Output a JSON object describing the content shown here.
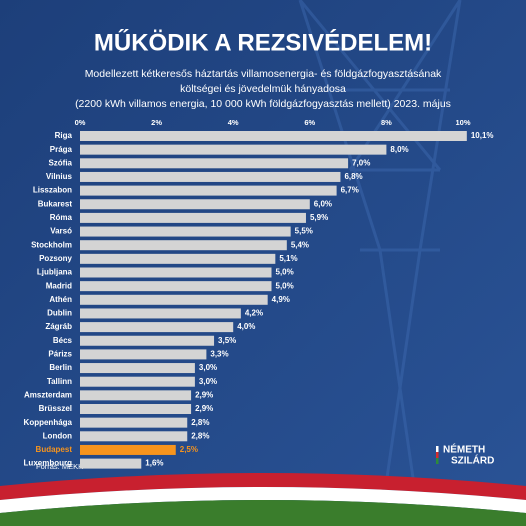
{
  "chart_data": {
    "type": "barh",
    "title": "MŰKÖDIK A REZSIVÉDELEM!",
    "subtitle": [
      "Modellezett kétkeresős háztartás villamosenergia- és földgázfogyasztásának",
      "költségei és jövedelmük hányadosa",
      "(2200 kWh villamos energia, 10 000 kWh földgázfogyasztás mellett) 2023. május"
    ],
    "categories": [
      "Riga",
      "Prága",
      "Szófia",
      "Vilnius",
      "Lisszabon",
      "Bukarest",
      "Róma",
      "Varsó",
      "Stockholm",
      "Pozsony",
      "Ljubljana",
      "Madrid",
      "Athén",
      "Dublin",
      "Zágráb",
      "Bécs",
      "Párizs",
      "Berlin",
      "Tallinn",
      "Amszterdam",
      "Brüsszel",
      "Koppenhága",
      "London",
      "Budapest",
      "Luxembourg"
    ],
    "values": [
      10.1,
      8.0,
      7.0,
      6.8,
      6.7,
      6.0,
      5.9,
      5.5,
      5.4,
      5.1,
      5.0,
      5.0,
      4.9,
      4.2,
      4.0,
      3.5,
      3.3,
      3.0,
      3.0,
      2.9,
      2.9,
      2.8,
      2.8,
      2.5,
      1.6
    ],
    "value_labels": [
      "10,1%",
      "8,0%",
      "7,0%",
      "6,8%",
      "6,7%",
      "6,0%",
      "5,9%",
      "5,5%",
      "5,4%",
      "5,1%",
      "5,0%",
      "5,0%",
      "4,9%",
      "4,2%",
      "4,0%",
      "3,5%",
      "3,3%",
      "3,0%",
      "3,0%",
      "2,9%",
      "2,9%",
      "2,8%",
      "2,8%",
      "2,5%",
      "1,6%"
    ],
    "colors": [
      "#d4d4d4",
      "#d4d4d4",
      "#d4d4d4",
      "#d4d4d4",
      "#d4d4d4",
      "#d4d4d4",
      "#d4d4d4",
      "#d4d4d4",
      "#d4d4d4",
      "#d4d4d4",
      "#d4d4d4",
      "#d4d4d4",
      "#d4d4d4",
      "#d4d4d4",
      "#d4d4d4",
      "#d4d4d4",
      "#d4d4d4",
      "#d4d4d4",
      "#d4d4d4",
      "#d4d4d4",
      "#d4d4d4",
      "#d4d4d4",
      "#d4d4d4",
      "#f7941d",
      "#d4d4d4"
    ],
    "label_colors": [
      "#ffffff",
      "#ffffff",
      "#ffffff",
      "#ffffff",
      "#ffffff",
      "#ffffff",
      "#ffffff",
      "#ffffff",
      "#ffffff",
      "#ffffff",
      "#ffffff",
      "#ffffff",
      "#ffffff",
      "#ffffff",
      "#ffffff",
      "#ffffff",
      "#ffffff",
      "#ffffff",
      "#ffffff",
      "#ffffff",
      "#ffffff",
      "#ffffff",
      "#ffffff",
      "#f7941d",
      "#ffffff"
    ],
    "xlim": [
      0,
      10.5
    ],
    "xticks": [
      {
        "value": 0,
        "label": "0%"
      },
      {
        "value": 2,
        "label": "2%"
      },
      {
        "value": 4,
        "label": "4%"
      },
      {
        "value": 6,
        "label": "6%"
      },
      {
        "value": 8,
        "label": "8%"
      },
      {
        "value": 10,
        "label": "10%"
      }
    ],
    "grid": false,
    "source": "Forrás: MEKH",
    "logo": [
      "NÉMETH",
      "SZILÁRD"
    ]
  }
}
